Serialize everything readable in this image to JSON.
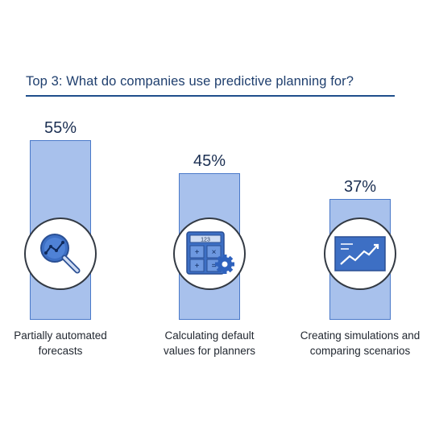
{
  "chart_data": {
    "type": "bar",
    "title": "Top 3: What do companies use predictive planning for?",
    "categories": [
      [
        "Partially automated",
        "forecasts"
      ],
      [
        "Calculating default",
        "values for planners"
      ],
      [
        "Creating simulations and",
        "comparing scenarios"
      ]
    ],
    "values": [
      55,
      45,
      37
    ],
    "value_labels": [
      "55%",
      "45%",
      "37%"
    ],
    "icons": [
      "magnifier-chart-icon",
      "calculator-gear-icon",
      "growth-chart-icon"
    ],
    "calculator_display": "123",
    "ylim": [
      0,
      55
    ],
    "colors": {
      "bar_fill": "#a8c1ec",
      "bar_stroke": "#4a79c9",
      "icon_blue": "#3d6fc4",
      "title": "#1f3f6e"
    }
  }
}
